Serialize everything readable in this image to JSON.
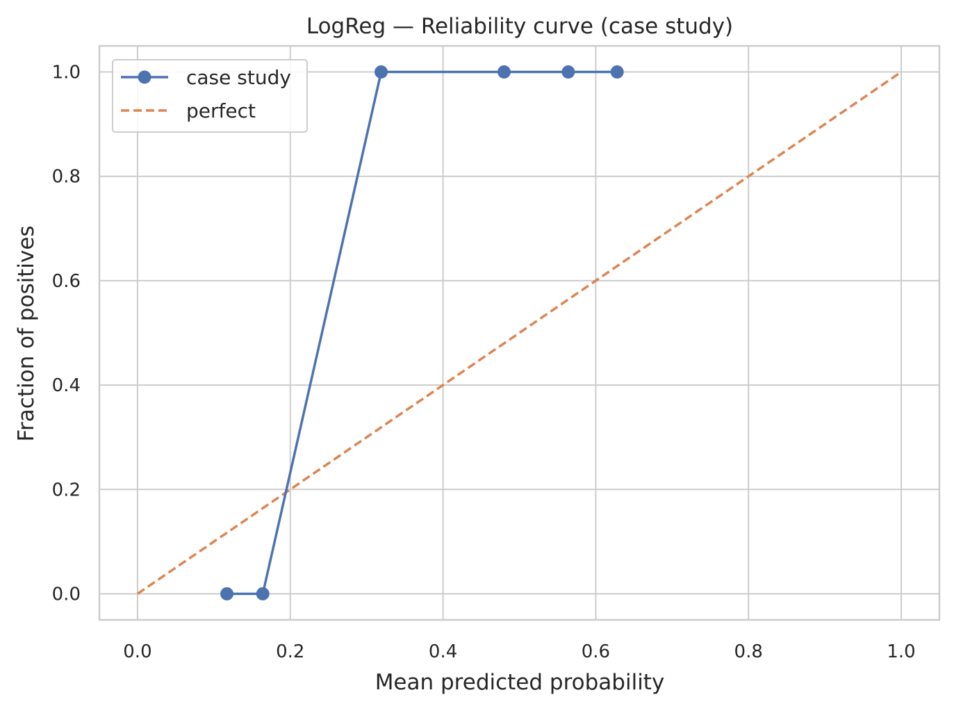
{
  "chart_data": {
    "type": "line",
    "title": "LogReg — Reliability curve (case study)",
    "xlabel": "Mean predicted probability",
    "ylabel": "Fraction of positives",
    "xlim": [
      -0.05,
      1.05
    ],
    "ylim": [
      -0.05,
      1.05
    ],
    "x_ticks": [
      0.0,
      0.2,
      0.4,
      0.6,
      0.8,
      1.0
    ],
    "y_ticks": [
      0.0,
      0.2,
      0.4,
      0.6,
      0.8,
      1.0
    ],
    "x_tick_labels": [
      "0.0",
      "0.2",
      "0.4",
      "0.6",
      "0.8",
      "1.0"
    ],
    "y_tick_labels": [
      "0.0",
      "0.2",
      "0.4",
      "0.6",
      "0.8",
      "1.0"
    ],
    "grid": true,
    "legend_position": "upper-left",
    "series": [
      {
        "name": "case study",
        "style": "solid-with-markers",
        "color": "#4c72b0",
        "x": [
          0.117,
          0.164,
          0.319,
          0.48,
          0.564,
          0.628
        ],
        "y": [
          0.0,
          0.0,
          1.0,
          1.0,
          1.0,
          1.0
        ]
      },
      {
        "name": "perfect",
        "style": "dashed",
        "color": "#dd8452",
        "x": [
          0.0,
          1.0
        ],
        "y": [
          0.0,
          1.0
        ]
      }
    ]
  }
}
